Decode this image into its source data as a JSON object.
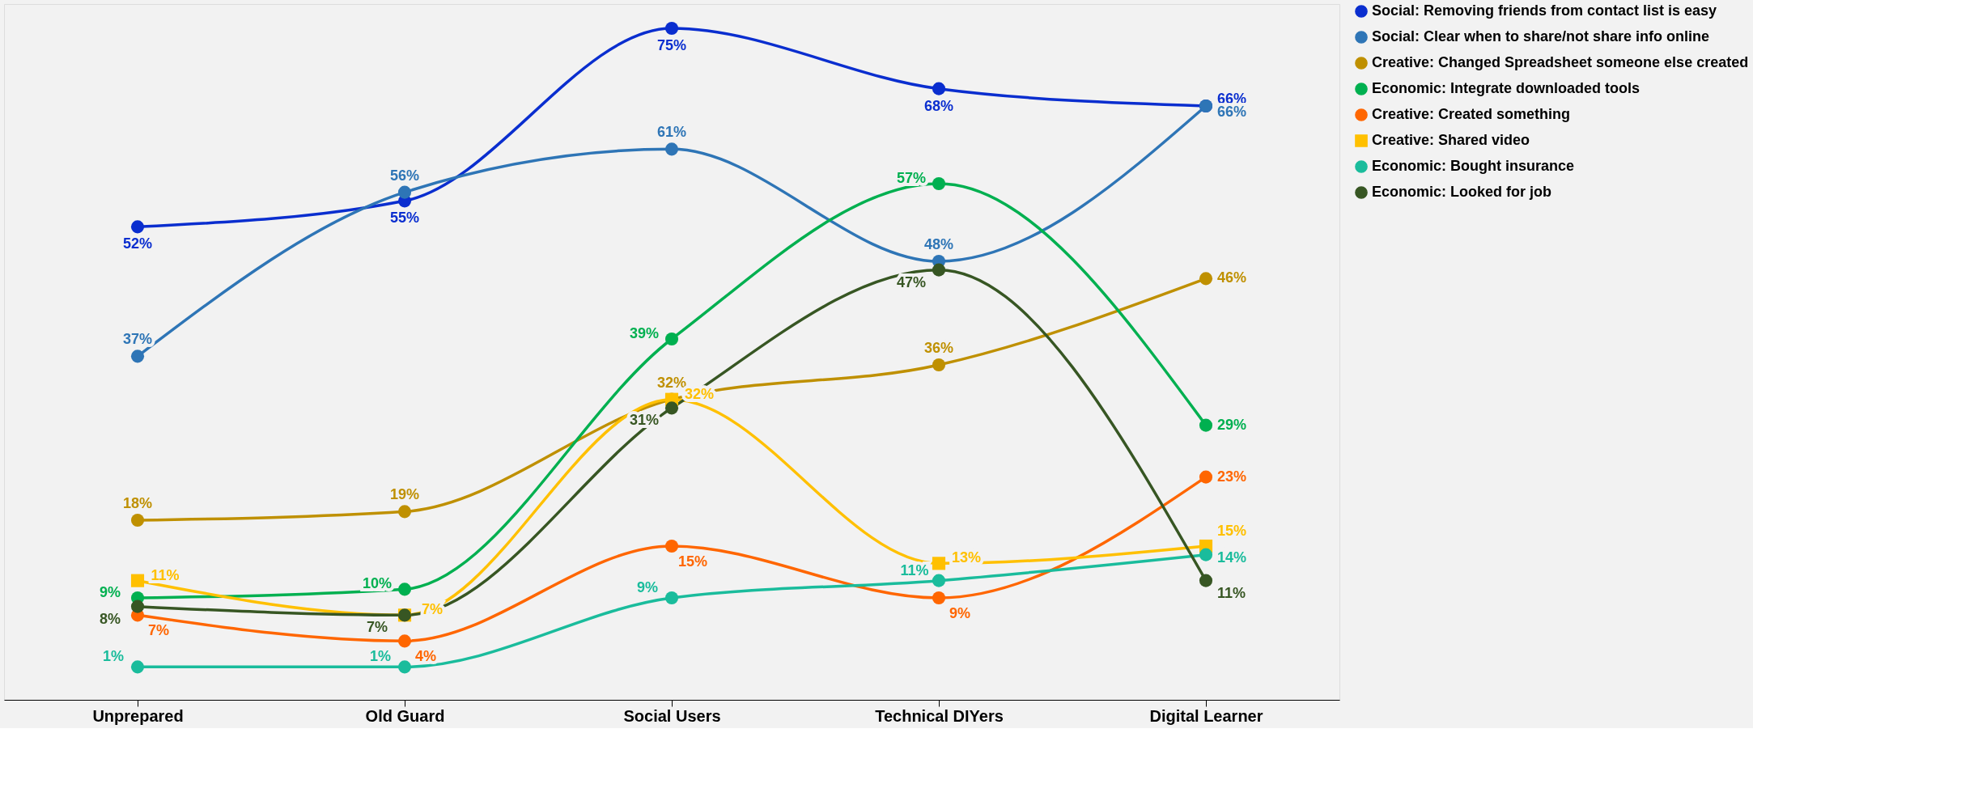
{
  "chart_data": {
    "type": "line",
    "categories": [
      "Unprepared",
      "Old Guard",
      "Social Users",
      "Technical DIYers",
      "Digital Learner"
    ],
    "tick_labels": "x",
    "legend": "right",
    "grid": false,
    "marker": "circle",
    "series": [
      {
        "name": "Social: Removing friends from contact list is easy",
        "color": "#0a2ecf",
        "values": [
          52,
          55,
          75,
          68,
          66
        ],
        "value_labels": [
          "52%",
          "55%",
          "75%",
          "68%",
          "66%"
        ]
      },
      {
        "name": "Social: Clear when to share/not share info online",
        "color": "#2e75b6",
        "values": [
          37,
          56,
          61,
          48,
          66
        ],
        "value_labels": [
          "37%",
          "56%",
          "61%",
          "48%",
          "66%"
        ]
      },
      {
        "name": "Creative: Changed Spreadsheet someone else created",
        "color": "#bf9000",
        "values": [
          18,
          19,
          32,
          36,
          46
        ],
        "value_labels": [
          "18%",
          "19%",
          "32%",
          "36%",
          "46%"
        ]
      },
      {
        "name": "Economic: Integrate downloaded tools",
        "color": "#00b050",
        "values": [
          9,
          10,
          39,
          57,
          29
        ],
        "value_labels": [
          "9%",
          "10%",
          "39%",
          "57%",
          "29%"
        ]
      },
      {
        "name": "Creative: Created something",
        "color": "#ff6600",
        "values": [
          7,
          4,
          15,
          9,
          23
        ],
        "value_labels": [
          "7%",
          "4%",
          "15%",
          "9%",
          "23%"
        ]
      },
      {
        "name": "Creative: Shared video",
        "color": "#ffc000",
        "marker": "square",
        "values": [
          11,
          7,
          32,
          13,
          15
        ],
        "value_labels": [
          "11%",
          "7%",
          "32%",
          "13%",
          "15%"
        ]
      },
      {
        "name": "Economic: Bought insurance",
        "color": "#1abc9c",
        "values": [
          1,
          1,
          9,
          11,
          14
        ],
        "value_labels": [
          "1%",
          "1%",
          "9%",
          "11%",
          "14%"
        ]
      },
      {
        "name": "Economic: Looked for job",
        "color": "#375623",
        "values": [
          8,
          7,
          31,
          47,
          11
        ],
        "value_labels": [
          "8%",
          "7%",
          "31%",
          "47%",
          "11%"
        ]
      }
    ]
  }
}
